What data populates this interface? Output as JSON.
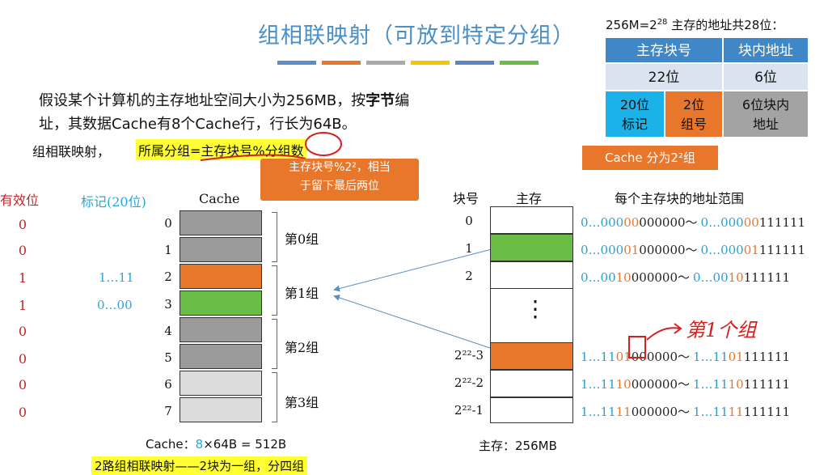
{
  "slide": {
    "title": "组相联映射（可放到特定分组）",
    "title_bar_colors": [
      "#5b8ec7",
      "#e8762b",
      "#a9a9a9",
      "#f2c500",
      "#5b86c5",
      "#6abd45"
    ]
  },
  "intro": {
    "line1_a": "假设某个计算机的主存地址空间大小为256MB，按",
    "line1_bold": "字节",
    "line1_b": "编",
    "line2": "址，其数据Cache有8个Cache行，行长为64B。"
  },
  "rule": {
    "prefix": "组相联映射，",
    "highlight": "所属分组=主存块号%分组数"
  },
  "bubble": {
    "line1": "主存块号%2²，相当",
    "line2": "于留下最后两位"
  },
  "cache": {
    "valid_header": "有效位",
    "tag_header": "标记(20位)",
    "cache_header": "Cache",
    "valid_bits": [
      "0",
      "0",
      "1",
      "1",
      "0",
      "0",
      "0",
      "0"
    ],
    "row_numbers": [
      "0",
      "1",
      "2",
      "3",
      "4",
      "5",
      "6",
      "7"
    ],
    "tags": [
      "",
      "",
      "1…11",
      "0…00",
      "",
      "",
      "",
      ""
    ],
    "row_colors": [
      "#9b9b9b",
      "#9b9b9b",
      "#e8762b",
      "#6abd45",
      "#9b9b9b",
      "#9b9b9b",
      "#dcdcdc",
      "#dcdcdc"
    ],
    "groups": [
      "第0组",
      "第1组",
      "第2组",
      "第3组"
    ],
    "size_label": "Cache：",
    "size_count": "8",
    "size_formula": "×64B = 512B"
  },
  "memory": {
    "block_header": "块号",
    "mem_header": "主存",
    "range_header": "每个主存块的地址范围",
    "blocks": [
      "0",
      "1",
      "2",
      "2²²-3",
      "2²²-2",
      "2²²-1"
    ],
    "block_colors": [
      "#ffffff",
      "#6abd45",
      "#ffffff",
      "#e8762b",
      "#ffffff",
      "#ffffff"
    ],
    "ranges": [
      {
        "s_pre": "0…000",
        "s_hl": "00",
        "s_post": "000000～",
        "e_pre": "0…000",
        "e_hl": "00",
        "e_post": "111111"
      },
      {
        "s_pre": "0…000",
        "s_hl": "01",
        "s_post": "000000～",
        "e_pre": "0…000",
        "e_hl": "01",
        "e_post": "111111"
      },
      {
        "s_pre": "0…00",
        "s_hl": "10",
        "s_post": "000000～",
        "e_pre": "0…00",
        "e_hl": "10",
        "e_post": "111111"
      },
      {
        "s_pre": "1…11",
        "s_hl": "01",
        "s_post": "000000～",
        "e_pre": "1…11",
        "e_hl": "01",
        "e_post": "111111"
      },
      {
        "s_pre": "1…11",
        "s_hl": "10",
        "s_post": "000000～",
        "e_pre": "1…11",
        "e_hl": "10",
        "e_post": "111111"
      },
      {
        "s_pre": "1…11",
        "s_hl": "11",
        "s_post": "000000～",
        "e_pre": "1…11",
        "e_hl": "11",
        "e_post": "111111"
      }
    ],
    "ellipsis": "⋮",
    "size_label": "主存：",
    "size_value": "256MB",
    "handwritten_note": "第1个组"
  },
  "address_table": {
    "caption_a": "256M=2",
    "caption_exp": "28",
    "caption_b": " 主存的地址共28位：",
    "head_block": "主存块号",
    "head_offset": "块内地址",
    "bits_block": "22位",
    "bits_offset": "6位",
    "tag_bits": "20位\n标记",
    "group_bits": "2位\n组号",
    "offset_desc": "6位块内\n地址",
    "cache_groups": "Cache 分为2²组"
  },
  "footer": {
    "highlight": "2路组相联映射——2块为一组，分四组"
  }
}
